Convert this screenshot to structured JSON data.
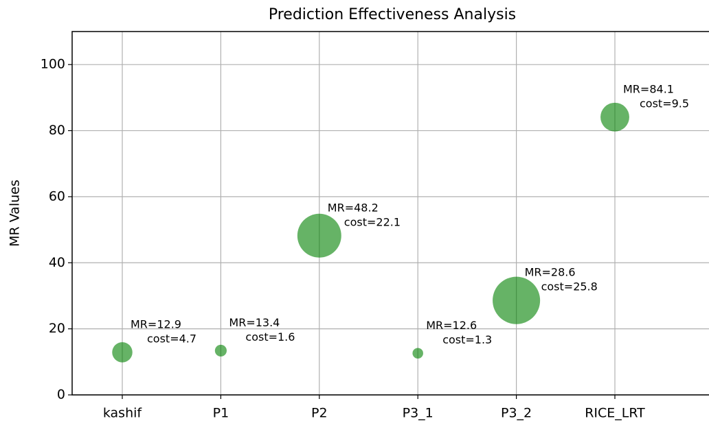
{
  "chart_data": {
    "type": "bubble",
    "title": "Prediction Effectiveness Analysis",
    "ylabel": "MR Values",
    "categories": [
      "kashif",
      "P1",
      "P2",
      "P3_1",
      "P3_2",
      "RICE_LRT"
    ],
    "values": [
      12.9,
      13.4,
      48.2,
      12.6,
      28.6,
      84.1
    ],
    "sizes": [
      4.7,
      1.6,
      22.1,
      1.3,
      25.8,
      9.5
    ],
    "value_labels": [
      "MR=12.9",
      "MR=13.4",
      "MR=48.2",
      "MR=12.6",
      "MR=28.6",
      "MR=84.1"
    ],
    "size_labels": [
      "cost=4.7",
      "cost=1.6",
      "cost=22.1",
      "cost=1.3",
      "cost=25.8",
      "cost=9.5"
    ],
    "color": "#008000",
    "alpha": 0.6,
    "ylim": [
      0,
      110
    ],
    "yticks": [
      0,
      20,
      40,
      60,
      80,
      100
    ],
    "grid": true
  }
}
